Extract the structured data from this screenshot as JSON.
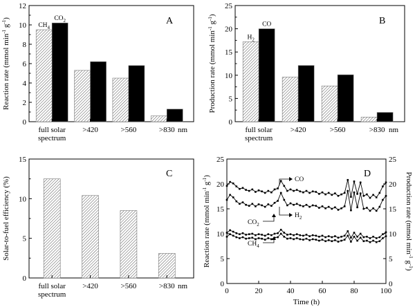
{
  "chart_data": [
    {
      "panel": "A",
      "type": "bar",
      "categories": [
        "full solar spectrum",
        ">420",
        ">560",
        ">830"
      ],
      "category_lines": [
        [
          "full solar",
          "spectrum"
        ],
        [
          ">420"
        ],
        [
          ">560"
        ],
        [
          ">830"
        ]
      ],
      "x_unit": "nm",
      "ylabel": "Reaction rate (mmol min",
      "ylabel_suffix": "g",
      "ylim": [
        0,
        12
      ],
      "yticks": [
        0,
        2,
        4,
        6,
        8,
        10,
        12
      ],
      "series": [
        {
          "name": "CH4",
          "label_main": "CH",
          "label_sub": "4",
          "fill": "hatched",
          "values": [
            9.5,
            5.3,
            4.5,
            0.6
          ]
        },
        {
          "name": "CO2",
          "label_main": "CO",
          "label_sub": "2",
          "fill": "black",
          "values": [
            10.2,
            6.2,
            5.8,
            1.3
          ]
        }
      ]
    },
    {
      "panel": "B",
      "type": "bar",
      "categories": [
        "full solar spectrum",
        ">420",
        ">560",
        ">830"
      ],
      "category_lines": [
        [
          "full solar",
          "spectrum"
        ],
        [
          ">420"
        ],
        [
          ">560"
        ],
        [
          ">830"
        ]
      ],
      "x_unit": "nm",
      "ylabel": "Production rate (mmol min",
      "ylabel_suffix": "g",
      "ylim": [
        0,
        25
      ],
      "yticks": [
        0,
        5,
        10,
        15,
        20,
        25
      ],
      "series": [
        {
          "name": "H2",
          "label_main": "H",
          "label_sub": "2",
          "fill": "hatched",
          "values": [
            17.2,
            9.6,
            7.7,
            1.0
          ]
        },
        {
          "name": "CO",
          "label_main": "CO",
          "label_sub": "",
          "fill": "black",
          "values": [
            20.0,
            12.1,
            10.1,
            2.0
          ]
        }
      ]
    },
    {
      "panel": "C",
      "type": "bar",
      "categories": [
        "full solar spectrum",
        ">420",
        ">560",
        ">830"
      ],
      "category_lines": [
        [
          "full solar",
          "spectrum"
        ],
        [
          ">420"
        ],
        [
          ">560"
        ],
        [
          ">830"
        ]
      ],
      "x_unit": "nm",
      "ylabel": "Solar-to-fuel efficiency (%)",
      "ylim": [
        0,
        15
      ],
      "yticks": [
        0,
        5,
        10,
        15
      ],
      "series": [
        {
          "name": "efficiency",
          "fill": "hatched",
          "values": [
            12.5,
            10.4,
            8.5,
            3.1
          ]
        }
      ]
    },
    {
      "panel": "D",
      "type": "line",
      "xlabel": "Time (h)",
      "xlim": [
        0,
        100
      ],
      "xticks": [
        0,
        20,
        40,
        60,
        80,
        100
      ],
      "ylabel_left": "Reaction rate (mmol min",
      "ylabel_right": "Production rate (mmol min",
      "ylabel_suffix": "g",
      "ylim": [
        0,
        25
      ],
      "yticks": [
        0,
        5,
        10,
        15,
        20,
        25
      ],
      "series": [
        {
          "name": "CO",
          "label_main": "CO",
          "label_sub": "",
          "axis": "right",
          "x": [
            0,
            2,
            4,
            6,
            8,
            10,
            12,
            14,
            16,
            18,
            20,
            22,
            24,
            26,
            28,
            30,
            32,
            34,
            36,
            38,
            40,
            42,
            44,
            46,
            48,
            50,
            52,
            54,
            56,
            58,
            60,
            62,
            64,
            66,
            68,
            70,
            72,
            74,
            76,
            78,
            80,
            82,
            84,
            86,
            88,
            90,
            92,
            94,
            96,
            98,
            100
          ],
          "y": [
            19.6,
            20.4,
            20.1,
            19.5,
            19.0,
            19.2,
            18.8,
            18.6,
            18.9,
            18.4,
            18.7,
            18.5,
            18.2,
            18.6,
            18.3,
            18.9,
            19.1,
            20.6,
            19.6,
            18.6,
            18.9,
            18.6,
            18.8,
            18.5,
            18.3,
            18.6,
            18.2,
            18.5,
            18.4,
            18.0,
            18.3,
            17.9,
            18.2,
            17.8,
            18.1,
            17.6,
            17.9,
            18.2,
            20.8,
            17.4,
            20.5,
            18.0,
            20.3,
            17.6,
            17.9,
            17.2,
            17.8,
            17.3,
            18.2,
            19.5,
            20.3
          ]
        },
        {
          "name": "H2",
          "label_main": "H",
          "label_sub": "2",
          "axis": "right",
          "x": [
            0,
            2,
            4,
            6,
            8,
            10,
            12,
            14,
            16,
            18,
            20,
            22,
            24,
            26,
            28,
            30,
            32,
            34,
            36,
            38,
            40,
            42,
            44,
            46,
            48,
            50,
            52,
            54,
            56,
            58,
            60,
            62,
            64,
            66,
            68,
            70,
            72,
            74,
            76,
            78,
            80,
            82,
            84,
            86,
            88,
            90,
            92,
            94,
            96,
            98,
            100
          ],
          "y": [
            16.8,
            17.8,
            17.3,
            16.5,
            16.0,
            16.3,
            15.8,
            15.6,
            16.0,
            15.5,
            15.9,
            15.7,
            15.4,
            15.9,
            15.6,
            16.2,
            16.6,
            18.2,
            16.8,
            15.7,
            16.1,
            15.8,
            16.0,
            15.7,
            15.5,
            15.8,
            15.4,
            15.7,
            15.6,
            15.2,
            15.5,
            15.1,
            15.4,
            15.0,
            15.3,
            14.8,
            15.1,
            15.5,
            18.6,
            14.7,
            18.3,
            15.3,
            18.1,
            15.0,
            15.2,
            14.6,
            15.1,
            14.6,
            15.4,
            16.8,
            17.6
          ]
        },
        {
          "name": "CO2",
          "label_main": "CO",
          "label_sub": "2",
          "axis": "left",
          "x": [
            0,
            2,
            4,
            6,
            8,
            10,
            12,
            14,
            16,
            18,
            20,
            22,
            24,
            26,
            28,
            30,
            32,
            34,
            36,
            38,
            40,
            42,
            44,
            46,
            48,
            50,
            52,
            54,
            56,
            58,
            60,
            62,
            64,
            66,
            68,
            70,
            72,
            74,
            76,
            78,
            80,
            82,
            84,
            86,
            88,
            90,
            92,
            94,
            96,
            98,
            100
          ],
          "y": [
            10.2,
            10.7,
            10.4,
            10.1,
            9.9,
            10.1,
            9.8,
            9.9,
            10.0,
            9.7,
            9.9,
            9.8,
            9.6,
            9.9,
            9.7,
            10.0,
            10.1,
            10.8,
            10.2,
            9.8,
            9.9,
            9.7,
            9.9,
            9.7,
            9.6,
            9.8,
            9.5,
            9.7,
            9.6,
            9.4,
            9.6,
            9.3,
            9.5,
            9.3,
            9.5,
            9.2,
            9.4,
            9.6,
            10.5,
            9.2,
            10.2,
            9.4,
            10.0,
            9.3,
            9.4,
            9.1,
            9.4,
            9.1,
            9.3,
            9.9,
            10.3
          ]
        },
        {
          "name": "CH4",
          "label_main": "CH",
          "label_sub": "4",
          "axis": "left",
          "x": [
            0,
            2,
            4,
            6,
            8,
            10,
            12,
            14,
            16,
            18,
            20,
            22,
            24,
            26,
            28,
            30,
            32,
            34,
            36,
            38,
            40,
            42,
            44,
            46,
            48,
            50,
            52,
            54,
            56,
            58,
            60,
            62,
            64,
            66,
            68,
            70,
            72,
            74,
            76,
            78,
            80,
            82,
            84,
            86,
            88,
            90,
            92,
            94,
            96,
            98,
            100
          ],
          "y": [
            9.4,
            9.9,
            9.6,
            9.3,
            9.1,
            9.3,
            9.0,
            9.1,
            9.2,
            8.9,
            9.1,
            9.0,
            8.8,
            9.1,
            8.9,
            9.2,
            9.3,
            10.0,
            9.4,
            9.0,
            9.1,
            8.9,
            9.1,
            8.9,
            8.8,
            9.0,
            8.7,
            8.9,
            8.8,
            8.6,
            8.8,
            8.5,
            8.7,
            8.5,
            8.7,
            8.4,
            8.6,
            8.8,
            9.6,
            8.4,
            9.4,
            8.6,
            9.2,
            8.5,
            8.6,
            8.3,
            8.6,
            8.3,
            8.5,
            9.1,
            9.5
          ]
        }
      ]
    }
  ]
}
